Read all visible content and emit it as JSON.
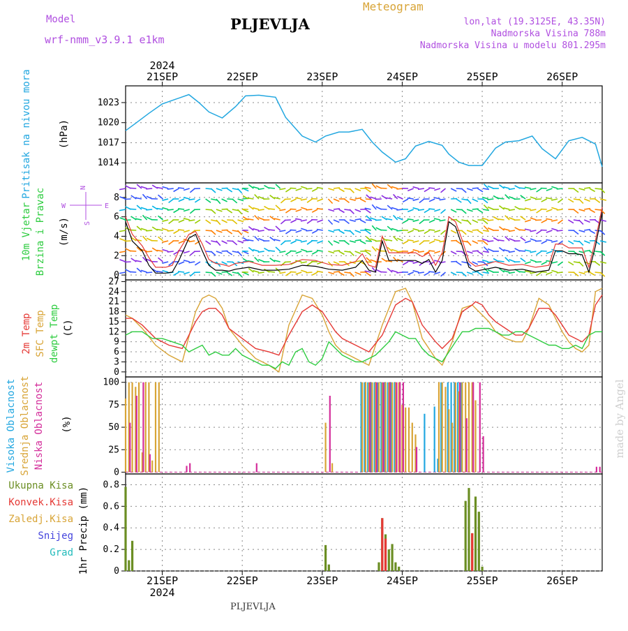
{
  "header": {
    "model_label": "Model",
    "model_name": "wrf-nmm_v3.9.1  e1km",
    "station": "PLJEVLJA",
    "product": "Meteogram",
    "lonlat": "lon,lat (19.3125E, 43.35N)",
    "elevation": "Nadmorska Visina 788m",
    "model_elevation": "Nadmorska Visina u modelu 801.295m",
    "footer_station": "PLJEVLJA",
    "watermark": "made by Angel"
  },
  "time_axis": {
    "year": "2024",
    "day_labels": [
      "21SEP",
      "22SEP",
      "23SEP",
      "24SEP",
      "25SEP",
      "26SEP"
    ],
    "start_hour": 13,
    "end_hour": 156
  },
  "colors": {
    "pressure": "#22a7e0",
    "wind_speed": "#000000",
    "wind_gust": "#e53935",
    "t2m": "#e53935",
    "tsfc": "#d8a436",
    "dewpt": "#2ecc40",
    "cloud_high": "#22a7e0",
    "cloud_mid": "#d8a436",
    "cloud_low": "#d42e9b",
    "precip_total": "#6b8e23",
    "precip_conv": "#e53935",
    "precip_snow": "#4444dd",
    "precip_grad": "#22bbbb"
  },
  "chart_data": [
    {
      "type": "line",
      "id": "pressure",
      "ylabel": "Pritisak na nivou mora",
      "unit": "(hPa)",
      "ylim": [
        1011,
        1025.5
      ],
      "yticks": [
        1014,
        1017,
        1020,
        1023
      ],
      "grid": true,
      "series": [
        {
          "key": "pressure",
          "x": [
            13,
            16,
            20,
            24,
            28,
            32,
            35,
            38,
            42,
            46,
            49,
            53,
            58,
            61,
            66,
            70,
            73,
            77,
            80,
            84,
            87,
            90,
            94,
            97,
            100,
            104,
            108,
            110,
            113,
            116,
            120,
            124,
            127,
            131,
            135,
            138,
            142,
            146,
            150,
            154,
            156
          ],
          "y": [
            1018.8,
            1019.9,
            1021.4,
            1022.8,
            1023.5,
            1024.2,
            1023.0,
            1021.6,
            1020.7,
            1022.4,
            1024.0,
            1024.1,
            1023.8,
            1020.8,
            1018.0,
            1017.1,
            1018.0,
            1018.6,
            1018.6,
            1019.0,
            1017.1,
            1015.6,
            1014.1,
            1014.6,
            1016.5,
            1017.2,
            1016.6,
            1015.3,
            1014.1,
            1013.6,
            1013.6,
            1016.2,
            1017.1,
            1017.3,
            1018.0,
            1016.1,
            1014.6,
            1017.3,
            1017.8,
            1016.8,
            1013.4
          ]
        }
      ]
    },
    {
      "type": "line",
      "id": "wind",
      "ylabel": "10m Vjetar Brzina i Pravac",
      "unit": "(m/s)",
      "compass": {
        "n": "N",
        "s": "S",
        "e": "E",
        "w": "W"
      },
      "ylim": [
        -0.5,
        9.5
      ],
      "yticks": [
        0,
        2,
        4,
        6,
        8
      ],
      "grid": true,
      "series": [
        {
          "key": "wind_speed",
          "x": [
            13,
            15,
            18,
            20,
            22,
            25,
            27,
            29,
            32,
            34,
            36,
            38,
            40,
            42,
            44,
            46,
            50,
            54,
            58,
            62,
            66,
            70,
            74,
            78,
            82,
            84,
            86,
            88,
            90,
            92,
            95,
            98,
            100,
            102,
            104,
            106,
            108,
            110,
            112,
            114,
            116,
            118,
            121,
            124,
            128,
            132,
            136,
            140,
            142,
            144,
            146,
            148,
            150,
            152,
            154,
            156
          ],
          "y": [
            5.5,
            3.5,
            2.5,
            1.0,
            0.2,
            0.2,
            0.3,
            1.5,
            3.8,
            4.2,
            2.5,
            1.0,
            0.5,
            0.5,
            0.4,
            0.6,
            0.8,
            0.5,
            0.5,
            0.6,
            1.0,
            0.9,
            0.6,
            0.5,
            0.8,
            1.5,
            0.5,
            0.3,
            3.5,
            1.5,
            1.5,
            1.5,
            1.5,
            1.2,
            1.6,
            0.3,
            1.5,
            5.5,
            5.0,
            3.0,
            0.8,
            0.4,
            0.6,
            0.8,
            0.5,
            0.6,
            0.3,
            0.5,
            2.5,
            2.5,
            2.2,
            2.2,
            2.1,
            0.3,
            3.0,
            6.5
          ]
        },
        {
          "key": "wind_gust",
          "x": [
            13,
            15,
            18,
            20,
            22,
            25,
            27,
            29,
            32,
            34,
            36,
            38,
            40,
            42,
            44,
            46,
            50,
            54,
            58,
            62,
            66,
            70,
            74,
            78,
            82,
            84,
            86,
            88,
            90,
            92,
            95,
            98,
            100,
            102,
            104,
            106,
            108,
            110,
            112,
            114,
            116,
            118,
            121,
            124,
            128,
            132,
            136,
            140,
            142,
            144,
            146,
            148,
            150,
            152,
            154,
            156
          ],
          "y": [
            6.0,
            4.2,
            3.0,
            1.8,
            0.8,
            0.8,
            1.0,
            2.5,
            4.2,
            4.5,
            3.2,
            1.6,
            1.2,
            1.1,
            0.9,
            1.2,
            1.4,
            1.0,
            1.0,
            1.1,
            1.6,
            1.5,
            1.1,
            1.0,
            1.4,
            2.2,
            1.0,
            0.8,
            4.0,
            2.3,
            2.3,
            2.3,
            2.3,
            1.9,
            2.3,
            1.0,
            2.3,
            6.0,
            5.5,
            3.6,
            1.4,
            0.9,
            1.1,
            1.4,
            1.0,
            1.1,
            0.8,
            1.0,
            3.2,
            3.2,
            2.8,
            2.8,
            2.8,
            0.8,
            3.6,
            7.0
          ]
        }
      ]
    },
    {
      "type": "line",
      "id": "temperature",
      "ylabels": [
        "2m Temp",
        "SFC Temp",
        "dewpt Temp"
      ],
      "unit": "(C)",
      "ylim": [
        -1.5,
        27.5
      ],
      "yticks": [
        0,
        3,
        6,
        9,
        12,
        15,
        18,
        21,
        24,
        27
      ],
      "grid": true,
      "series": [
        {
          "key": "tsfc",
          "x": [
            13,
            15,
            18,
            22,
            26,
            30,
            34,
            36,
            38,
            40,
            42,
            44,
            48,
            52,
            56,
            59,
            62,
            66,
            69,
            72,
            74,
            76,
            78,
            80,
            82,
            86,
            90,
            94,
            97,
            99,
            102,
            106,
            108,
            111,
            114,
            117,
            118,
            120,
            122,
            124,
            127,
            130,
            132,
            134,
            137,
            140,
            142,
            144,
            146,
            148,
            150,
            152,
            154,
            156
          ],
          "y": [
            17,
            16,
            13,
            8,
            5,
            3,
            18,
            22,
            23,
            22,
            19,
            13,
            8,
            4,
            2,
            0,
            14,
            23,
            22,
            17,
            12,
            8,
            6,
            5,
            4,
            2,
            14,
            24,
            25,
            21,
            10,
            4,
            2,
            9,
            19,
            20,
            19,
            17,
            15,
            12,
            10,
            9,
            9,
            13,
            22,
            20,
            16,
            12,
            9,
            7,
            6,
            8,
            24,
            25
          ]
        },
        {
          "key": "t2m",
          "x": [
            13,
            15,
            18,
            22,
            26,
            30,
            34,
            36,
            38,
            40,
            42,
            44,
            48,
            52,
            56,
            59,
            62,
            66,
            69,
            72,
            74,
            76,
            78,
            80,
            82,
            86,
            90,
            94,
            97,
            99,
            102,
            106,
            108,
            111,
            114,
            117,
            118,
            120,
            122,
            124,
            127,
            130,
            132,
            134,
            137,
            140,
            142,
            144,
            146,
            148,
            150,
            152,
            154,
            156
          ],
          "y": [
            16,
            16,
            14,
            10,
            8,
            7,
            15,
            18,
            19,
            19,
            17,
            13,
            10,
            7,
            6,
            5,
            11,
            18,
            20,
            18,
            15,
            12,
            10,
            9,
            8,
            6,
            11,
            20,
            22,
            21,
            14,
            9,
            7,
            10,
            18,
            20,
            21,
            20,
            17,
            15,
            13,
            11,
            11,
            13,
            19,
            19,
            17,
            14,
            11,
            10,
            9,
            11,
            20,
            23
          ]
        },
        {
          "key": "dewpt",
          "x": [
            13,
            15,
            18,
            21,
            24,
            27,
            30,
            32,
            34,
            36,
            38,
            40,
            42,
            44,
            46,
            48,
            50,
            52,
            54,
            56,
            58,
            60,
            62,
            64,
            66,
            68,
            70,
            72,
            74,
            76,
            78,
            80,
            82,
            84,
            86,
            88,
            90,
            92,
            94,
            96,
            98,
            100,
            102,
            104,
            106,
            108,
            110,
            112,
            114,
            116,
            118,
            120,
            122,
            124,
            126,
            128,
            130,
            132,
            134,
            136,
            138,
            140,
            142,
            144,
            146,
            148,
            150,
            152,
            154,
            156
          ],
          "y": [
            11,
            12,
            12,
            10,
            10,
            9,
            8,
            6,
            7,
            8,
            5,
            6,
            5,
            5,
            7,
            5,
            4,
            3,
            2,
            2,
            1,
            3,
            2,
            6,
            7,
            3,
            2,
            4,
            9,
            7,
            5,
            4,
            3,
            3,
            4,
            5,
            7,
            9,
            12,
            11,
            10,
            10,
            7,
            5,
            4,
            3,
            6,
            9,
            12,
            12,
            13,
            13,
            13,
            12,
            11,
            11,
            12,
            12,
            11,
            10,
            9,
            8,
            8,
            7,
            7,
            8,
            7,
            11,
            12,
            12
          ]
        }
      ]
    },
    {
      "type": "bar",
      "id": "clouds",
      "ylabels": [
        "Visoka Oblacnost",
        "Srednja Oblacnost",
        "Niska Oblacnost"
      ],
      "unit": "(%)",
      "ylim": [
        -2,
        106
      ],
      "yticks": [
        0,
        25,
        50,
        75,
        100
      ],
      "grid": true,
      "series": [
        {
          "key": "cloud_high",
          "x": [
            84,
            85,
            86,
            87,
            88,
            89,
            90,
            91,
            92,
            93,
            94,
            103,
            106,
            107,
            108,
            110,
            111,
            112,
            113,
            114
          ],
          "v": [
            100,
            100,
            100,
            100,
            100,
            100,
            100,
            100,
            100,
            100,
            100,
            65,
            73,
            15,
            100,
            100,
            100,
            100,
            100,
            100
          ]
        },
        {
          "key": "cloud_mid",
          "x": [
            13,
            14,
            15,
            16,
            17,
            18,
            19,
            20,
            21,
            22,
            23,
            73,
            75,
            84,
            85,
            86,
            87,
            88,
            89,
            90,
            91,
            92,
            93,
            94,
            95,
            96,
            97,
            98,
            99,
            100,
            107,
            108,
            109,
            110,
            111,
            112,
            113,
            114,
            115,
            116,
            117,
            118
          ],
          "v": [
            82,
            100,
            100,
            95,
            100,
            22,
            100,
            100,
            13,
            100,
            100,
            55,
            10,
            100,
            100,
            100,
            100,
            100,
            100,
            100,
            100,
            100,
            100,
            100,
            100,
            75,
            72,
            72,
            55,
            42,
            100,
            100,
            95,
            70,
            55,
            100,
            90,
            100,
            100,
            100,
            100,
            80
          ]
        },
        {
          "key": "cloud_low",
          "x": [
            14,
            16,
            18,
            20,
            31,
            32,
            52,
            74,
            86,
            88,
            90,
            92,
            94,
            95,
            96,
            100,
            113,
            115,
            117,
            119,
            120,
            154,
            155
          ],
          "v": [
            55,
            85,
            100,
            20,
            7,
            10,
            10,
            85,
            100,
            100,
            100,
            100,
            100,
            100,
            100,
            28,
            100,
            60,
            100,
            100,
            40,
            6,
            6
          ]
        }
      ]
    },
    {
      "type": "bar",
      "id": "precip",
      "ylabel": "1hr Precip (mm)",
      "legend": [
        "Ukupna  Kisa",
        "Konvek.Kisa",
        "Zaledj.Kisa",
        "Snijeg",
        "Grad"
      ],
      "ylim": [
        0,
        0.9
      ],
      "yticks": [
        0,
        0.2,
        0.4,
        0.6,
        0.8
      ],
      "grid": true,
      "series": [
        {
          "key": "precip_total",
          "x": [
            13,
            14,
            15,
            73,
            74,
            89,
            90,
            91,
            92,
            93,
            94,
            95,
            115,
            116,
            117,
            118,
            119,
            120
          ],
          "v": [
            0.78,
            0.1,
            0.28,
            0.24,
            0.06,
            0.08,
            0.49,
            0.34,
            0.2,
            0.25,
            0.08,
            0.04,
            0.65,
            0.77,
            0.35,
            0.69,
            0.55,
            0.04
          ]
        },
        {
          "key": "precip_conv",
          "x": [
            90,
            91,
            117
          ],
          "v": [
            0.49,
            0.3,
            0.35
          ]
        }
      ]
    }
  ]
}
